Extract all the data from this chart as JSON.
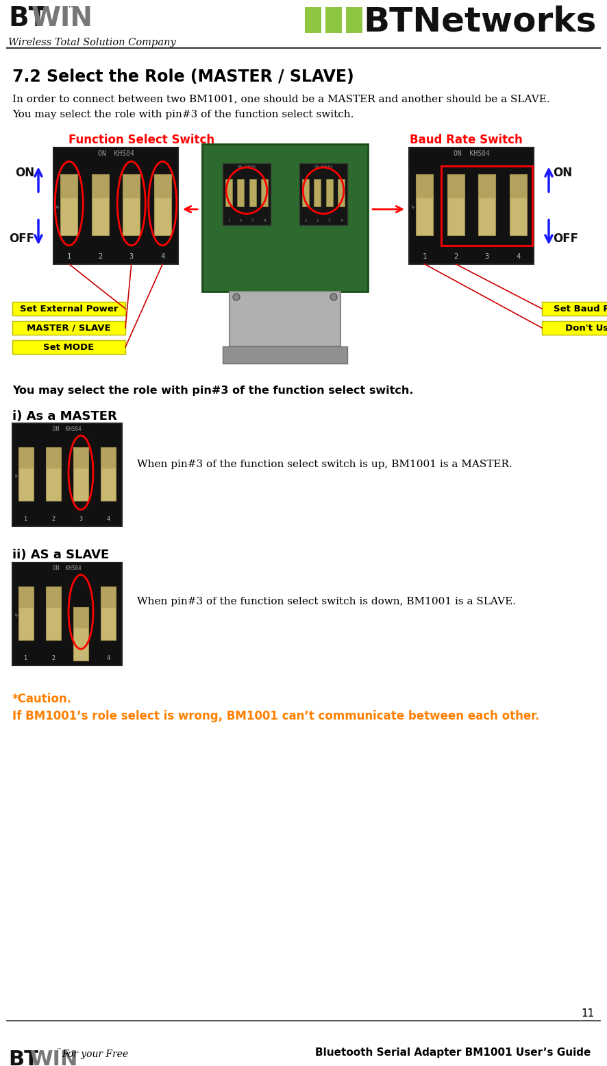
{
  "fig_width": 8.86,
  "fig_height": 15.54,
  "bg_color": "#ffffff",
  "header": {
    "company": "Wireless Total Solution Company",
    "brand": "BTNetworks",
    "brand_squares": [
      "#8dc63f",
      "#8dc63f",
      "#8dc63f"
    ]
  },
  "footer": {
    "page_num": "11",
    "footer_left": "For your Free",
    "footer_right": "Bluetooth Serial Adapter BM1001 User’s Guide"
  },
  "title": "7.2 Select the Role (MASTER / SLAVE)",
  "body_text1": "In order to connect between two BM1001, one should be a MASTER and another should be a SLAVE.",
  "body_text2": "You may select the role with pin#3 of the function select switch.",
  "label_func": "Function Select Switch",
  "label_baud": "Baud Rate Switch",
  "label_func_color": "#ff0000",
  "label_baud_color": "#ff0000",
  "yellow_labels_left": [
    "Set External Power",
    "MASTER / SLAVE",
    "Set MODE"
  ],
  "yellow_labels_right": [
    "Set Baud Rate",
    "Don't Use"
  ],
  "yellow_bg": "#ffff00",
  "bold_text": "You may select the role with pin#3 of the function select switch.",
  "section_i_title": "i) As a MASTER",
  "section_i_text": "When pin#3 of the function select switch is up, BM1001 is a MASTER.",
  "section_ii_title": "ii) AS a SLAVE",
  "section_ii_text": "When pin#3 of the function select switch is down, BM1001 is a SLAVE.",
  "caution_title": "*Caution.",
  "caution_text": "If BM1001’s role select is wrong, BM1001 can’t communicate between each other.",
  "caution_color": "#ff8000"
}
